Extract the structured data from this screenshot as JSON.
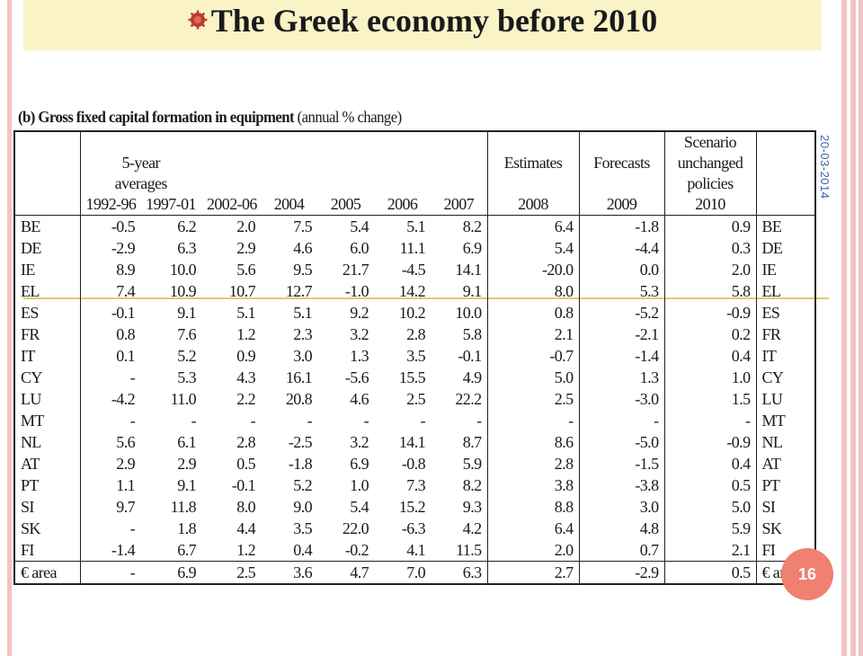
{
  "slide": {
    "title": "The Greek economy before 2010",
    "date": "20-03-2014",
    "page_number": "16"
  },
  "caption": {
    "label": "(b)",
    "bold_text": "Gross fixed capital formation in equipment",
    "unit": "(annual % change)"
  },
  "headers": {
    "averages": "5-year averages",
    "estimates": "Estimates",
    "forecasts": "Forecasts",
    "scenario": "Scenario unchanged policies",
    "years": [
      "1992-96",
      "1997-01",
      "2002-06",
      "2004",
      "2005",
      "2006",
      "2007",
      "2008",
      "2009",
      "2010"
    ]
  },
  "rows": [
    {
      "code": "BE",
      "values": [
        "-0.5",
        "6.2",
        "2.0",
        "7.5",
        "5.4",
        "5.1",
        "8.2",
        "6.4",
        "-1.8",
        "0.9"
      ]
    },
    {
      "code": "DE",
      "values": [
        "-2.9",
        "6.3",
        "2.9",
        "4.6",
        "6.0",
        "11.1",
        "6.9",
        "5.4",
        "-4.4",
        "0.3"
      ]
    },
    {
      "code": "IE",
      "values": [
        "8.9",
        "10.0",
        "5.6",
        "9.5",
        "21.7",
        "-4.5",
        "14.1",
        "-20.0",
        "0.0",
        "2.0"
      ]
    },
    {
      "code": "EL",
      "values": [
        "7.4",
        "10.9",
        "10.7",
        "12.7",
        "-1.0",
        "14.2",
        "9.1",
        "8.0",
        "5.3",
        "5.8"
      ]
    },
    {
      "code": "ES",
      "values": [
        "-0.1",
        "9.1",
        "5.1",
        "5.1",
        "9.2",
        "10.2",
        "10.0",
        "0.8",
        "-5.2",
        "-0.9"
      ]
    },
    {
      "code": "FR",
      "values": [
        "0.8",
        "7.6",
        "1.2",
        "2.3",
        "3.2",
        "2.8",
        "5.8",
        "2.1",
        "-2.1",
        "0.2"
      ]
    },
    {
      "code": "IT",
      "values": [
        "0.1",
        "5.2",
        "0.9",
        "3.0",
        "1.3",
        "3.5",
        "-0.1",
        "-0.7",
        "-1.4",
        "0.4"
      ]
    },
    {
      "code": "CY",
      "values": [
        "-",
        "5.3",
        "4.3",
        "16.1",
        "-5.6",
        "15.5",
        "4.9",
        "5.0",
        "1.3",
        "1.0"
      ]
    },
    {
      "code": "LU",
      "values": [
        "-4.2",
        "11.0",
        "2.2",
        "20.8",
        "4.6",
        "2.5",
        "22.2",
        "2.5",
        "-3.0",
        "1.5"
      ]
    },
    {
      "code": "MT",
      "values": [
        "-",
        "-",
        "-",
        "-",
        "-",
        "-",
        "-",
        "-",
        "-",
        "-"
      ]
    },
    {
      "code": "NL",
      "values": [
        "5.6",
        "6.1",
        "2.8",
        "-2.5",
        "3.2",
        "14.1",
        "8.7",
        "8.6",
        "-5.0",
        "-0.9"
      ]
    },
    {
      "code": "AT",
      "values": [
        "2.9",
        "2.9",
        "0.5",
        "-1.8",
        "6.9",
        "-0.8",
        "5.9",
        "2.8",
        "-1.5",
        "0.4"
      ]
    },
    {
      "code": "PT",
      "values": [
        "1.1",
        "9.1",
        "-0.1",
        "5.2",
        "1.0",
        "7.3",
        "8.2",
        "3.8",
        "-3.8",
        "0.5"
      ]
    },
    {
      "code": "SI",
      "values": [
        "9.7",
        "11.8",
        "8.0",
        "9.0",
        "5.4",
        "15.2",
        "9.3",
        "8.8",
        "3.0",
        "5.0"
      ]
    },
    {
      "code": "SK",
      "values": [
        "-",
        "1.8",
        "4.4",
        "3.5",
        "22.0",
        "-6.3",
        "4.2",
        "6.4",
        "4.8",
        "5.9"
      ]
    },
    {
      "code": "FI",
      "values": [
        "-1.4",
        "6.7",
        "1.2",
        "0.4",
        "-0.2",
        "4.1",
        "11.5",
        "2.0",
        "0.7",
        "2.1"
      ]
    }
  ],
  "total": {
    "code": "€ area",
    "values": [
      "-",
      "6.9",
      "2.5",
      "3.6",
      "4.7",
      "7.0",
      "6.3",
      "2.7",
      "-2.9",
      "0.5"
    ]
  },
  "colors": {
    "accent_circle": "#f08070",
    "title_band": "#fbf3c8",
    "side_bars": "#f2c4c4",
    "date_text": "#4060b0"
  }
}
